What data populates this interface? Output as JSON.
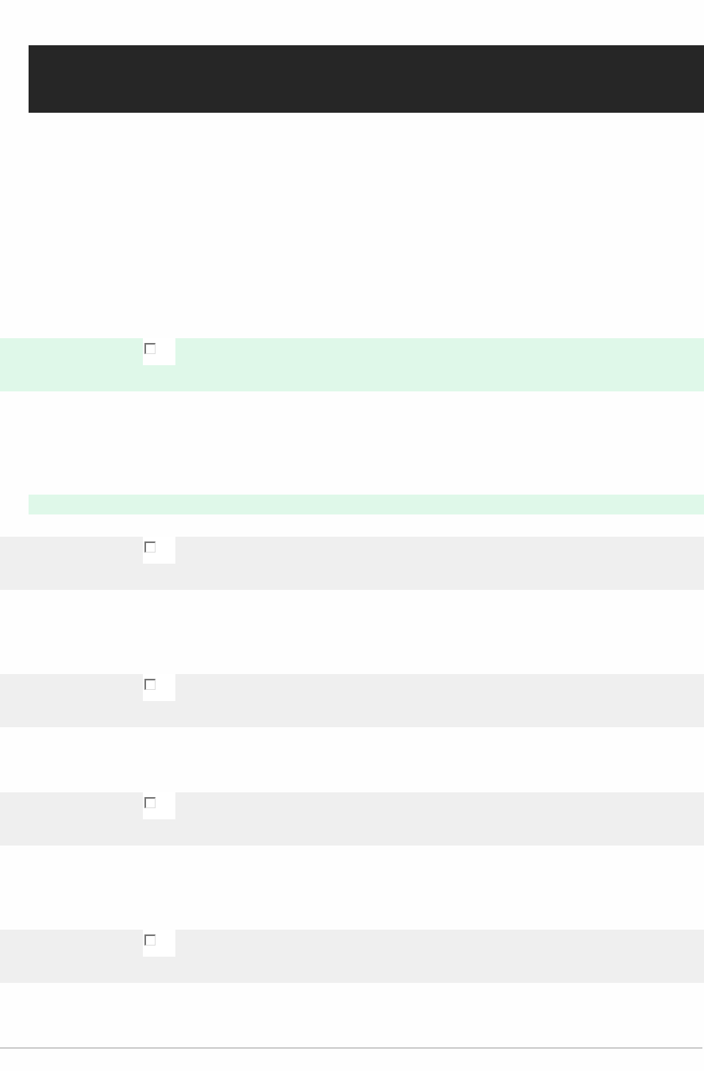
{
  "colors": {
    "header_bg": "#262626",
    "highlight_row": "#dff8e9",
    "alternate_row": "#efefef",
    "divider": "#cccccc"
  },
  "rows": [
    {
      "style": "highlighted",
      "checked": false
    },
    {
      "style": "gray",
      "checked": false
    },
    {
      "style": "gray",
      "checked": false
    },
    {
      "style": "gray",
      "checked": false
    },
    {
      "style": "gray",
      "checked": false
    }
  ]
}
